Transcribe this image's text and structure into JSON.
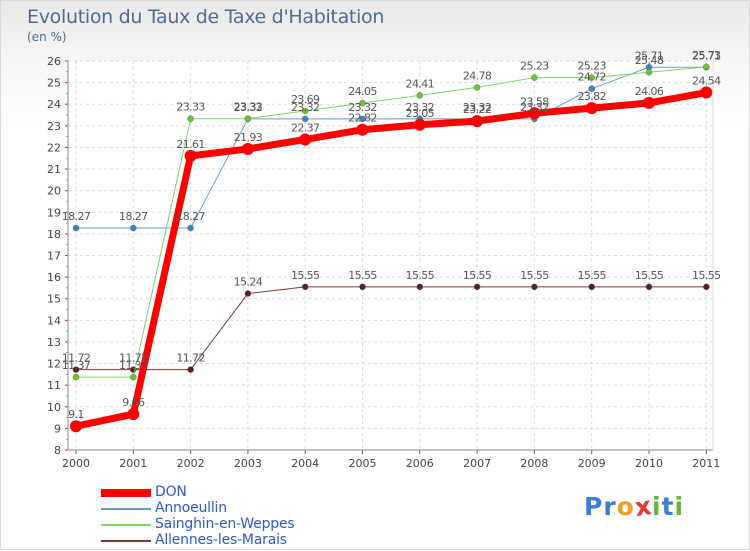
{
  "header": {
    "title": "Evolution du Taux de Taxe d'Habitation",
    "subtitle": "(en %)"
  },
  "logo": {
    "text": "Proxiti",
    "letters": [
      "P",
      "r",
      "o",
      "x",
      "i",
      "t",
      "i"
    ],
    "colors": [
      "#3a7fd6",
      "#3a7fd6",
      "#f0a020",
      "#e53935",
      "#69b33c",
      "#3a7fd6",
      "#69b33c"
    ]
  },
  "chart_data": {
    "type": "line",
    "title": "Evolution du Taux de Taxe d'Habitation",
    "ylabel": "(en %)",
    "xlabel": "",
    "x": [
      "2000",
      "2001",
      "2002",
      "2003",
      "2004",
      "2005",
      "2006",
      "2007",
      "2008",
      "2009",
      "2010",
      "2011"
    ],
    "ylim": [
      8,
      26
    ],
    "yticks": [
      8,
      9,
      10,
      11,
      12,
      13,
      14,
      15,
      16,
      17,
      18,
      19,
      20,
      21,
      22,
      23,
      24,
      25,
      26
    ],
    "grid": true,
    "legend_position": "bottom-left",
    "series": [
      {
        "name": "DON",
        "color": "#ff0000",
        "width": 7,
        "marker_color": "#ff0000",
        "marker_size": 6,
        "values": [
          9.1,
          9.66,
          21.61,
          21.93,
          22.37,
          22.82,
          23.05,
          23.22,
          23.58,
          23.82,
          24.06,
          24.54
        ],
        "labels": [
          "9.1",
          "9.66",
          "21.61",
          "21.93",
          "22.37",
          "22.82",
          "23.05",
          "23.22",
          "23.58",
          "23.82",
          "24.06",
          "24.54"
        ]
      },
      {
        "name": "Annoeullin",
        "color": "#6a9bc7",
        "width": 1,
        "marker_color": "#3d84c6",
        "marker_size": 3,
        "values": [
          18.27,
          18.27,
          18.27,
          23.32,
          23.32,
          23.32,
          23.32,
          23.32,
          23.32,
          24.72,
          25.71,
          25.71
        ],
        "labels": [
          "18.27",
          "18.27",
          "18.27",
          "23.32",
          "23.32",
          "23.32",
          "23.32",
          "23.32",
          "23.32",
          "24.72",
          "25.71",
          "25.71"
        ]
      },
      {
        "name": "Sainghin-en-Weppes",
        "color": "#7fd663",
        "width": 1,
        "marker_color": "#66c733",
        "marker_size": 3,
        "values": [
          11.37,
          11.37,
          23.33,
          23.33,
          23.69,
          24.05,
          24.41,
          24.78,
          25.23,
          25.23,
          25.48,
          25.73
        ],
        "labels": [
          "11.37",
          "11.37",
          "23.33",
          "23.33",
          "23.69",
          "24.05",
          "24.41",
          "24.78",
          "25.23",
          "25.23",
          "25.48",
          "25.73"
        ]
      },
      {
        "name": "Allennes-les-Marais",
        "color": "#7a3c3c",
        "width": 1,
        "marker_color": "#5a1e1e",
        "marker_size": 3,
        "values": [
          11.72,
          11.72,
          11.72,
          15.24,
          15.55,
          15.55,
          15.55,
          15.55,
          15.55,
          15.55,
          15.55,
          15.55
        ],
        "labels": [
          "11.72",
          "11.72",
          "11.72",
          "15.24",
          "15.55",
          "15.55",
          "15.55",
          "15.55",
          "15.55",
          "15.55",
          "15.55",
          "15.55"
        ]
      }
    ]
  }
}
